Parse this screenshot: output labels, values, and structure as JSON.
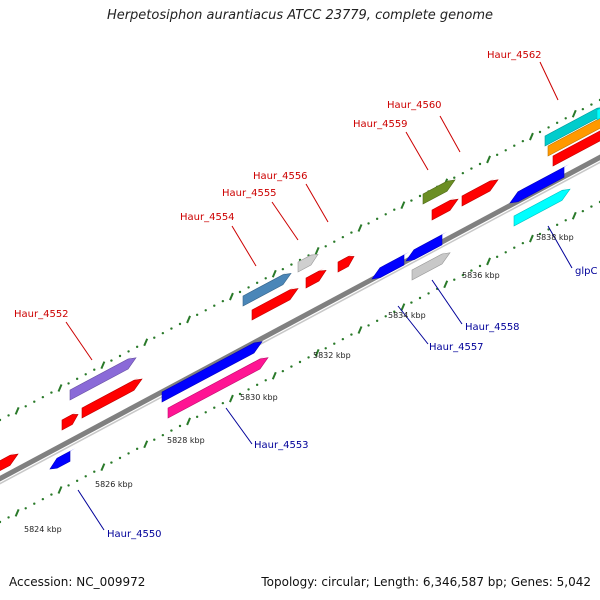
{
  "title": "Herpetosiphon aurantiacus ATCC 23779, complete genome",
  "footer": {
    "accession": "Accession: NC_009972",
    "summary": "Topology: circular; Length: 6,346,587 bp; Genes: 5,042"
  },
  "scale_labels": [
    "5824 kbp",
    "5826 kbp",
    "5828 kbp",
    "5830 kbp",
    "5832 kbp",
    "5834 kbp",
    "5836 kbp",
    "5838 kbp"
  ],
  "gene_labels_upper": [
    "Haur_4552",
    "Haur_4554",
    "Haur_4555",
    "Haur_4556",
    "Haur_4559",
    "Haur_4560",
    "Haur_4562"
  ],
  "gene_labels_lower": [
    "Haur_4550",
    "Haur_4553",
    "Haur_4557",
    "Haur_4558",
    "glpC"
  ],
  "colors": {
    "upper_label": "#cc0000",
    "lower_label": "#000099",
    "backbone": "#808080",
    "tick": "#2a7a2a"
  }
}
